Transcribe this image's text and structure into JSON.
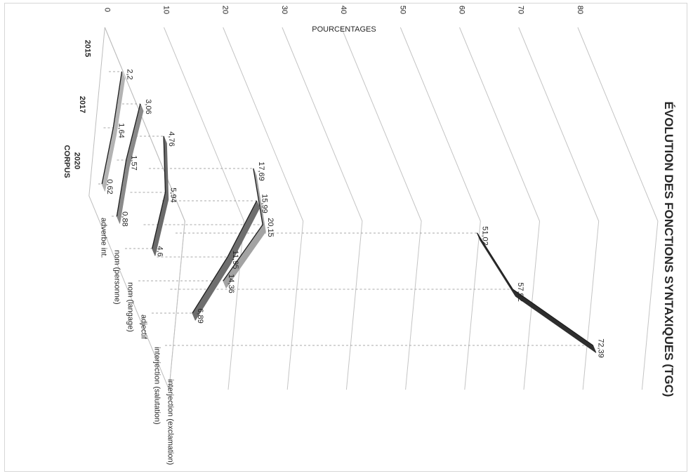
{
  "chart_data": {
    "type": "line",
    "title": "ÉVOLUTION DES FONCTIONS SYNTAXIQUES (TGC)",
    "xlabel": "CORPUS",
    "ylabel": "POURCENTAGES",
    "categories": [
      "2015",
      "2017",
      "2020"
    ],
    "y_ticks": [
      0,
      10,
      20,
      30,
      40,
      50,
      60,
      70,
      80
    ],
    "ylim": [
      0,
      80
    ],
    "grid": true,
    "rendering": "3d-line, rotated 90 degrees clockwise",
    "series": [
      {
        "name": "adverbe int.",
        "values": [
          2.2,
          1.64,
          0.62
        ],
        "color": "#b3b3b3"
      },
      {
        "name": "nom (personne)",
        "values": [
          3.06,
          1.57,
          0.88
        ],
        "color": "#8a8a8a"
      },
      {
        "name": "nom (langage)",
        "values": [
          4.76,
          5.94,
          4.6
        ],
        "color": "#6b6b6b"
      },
      {
        "name": "adjectif",
        "values": [
          17.69,
          20.15,
          14.36
        ],
        "color": "#a3a3a3"
      },
      {
        "name": "interjection (salutation)",
        "values": [
          15.99,
          11.95,
          6.89
        ],
        "color": "#6e6e6e"
      },
      {
        "name": "interjection (exclamation)",
        "values": [
          51.02,
          57.92,
          72.39
        ],
        "color": "#2e2e2e"
      }
    ],
    "value_labels": [
      [
        "2,2",
        "1,64",
        "0,62"
      ],
      [
        "3,06",
        "1,57",
        "0,88"
      ],
      [
        "4,76",
        "5,94",
        "4,6"
      ],
      [
        "17,69",
        "20,15",
        "14,36"
      ],
      [
        "15,99",
        "11,95",
        "6,89"
      ],
      [
        "51,02",
        "57,92",
        "72,39"
      ]
    ]
  }
}
